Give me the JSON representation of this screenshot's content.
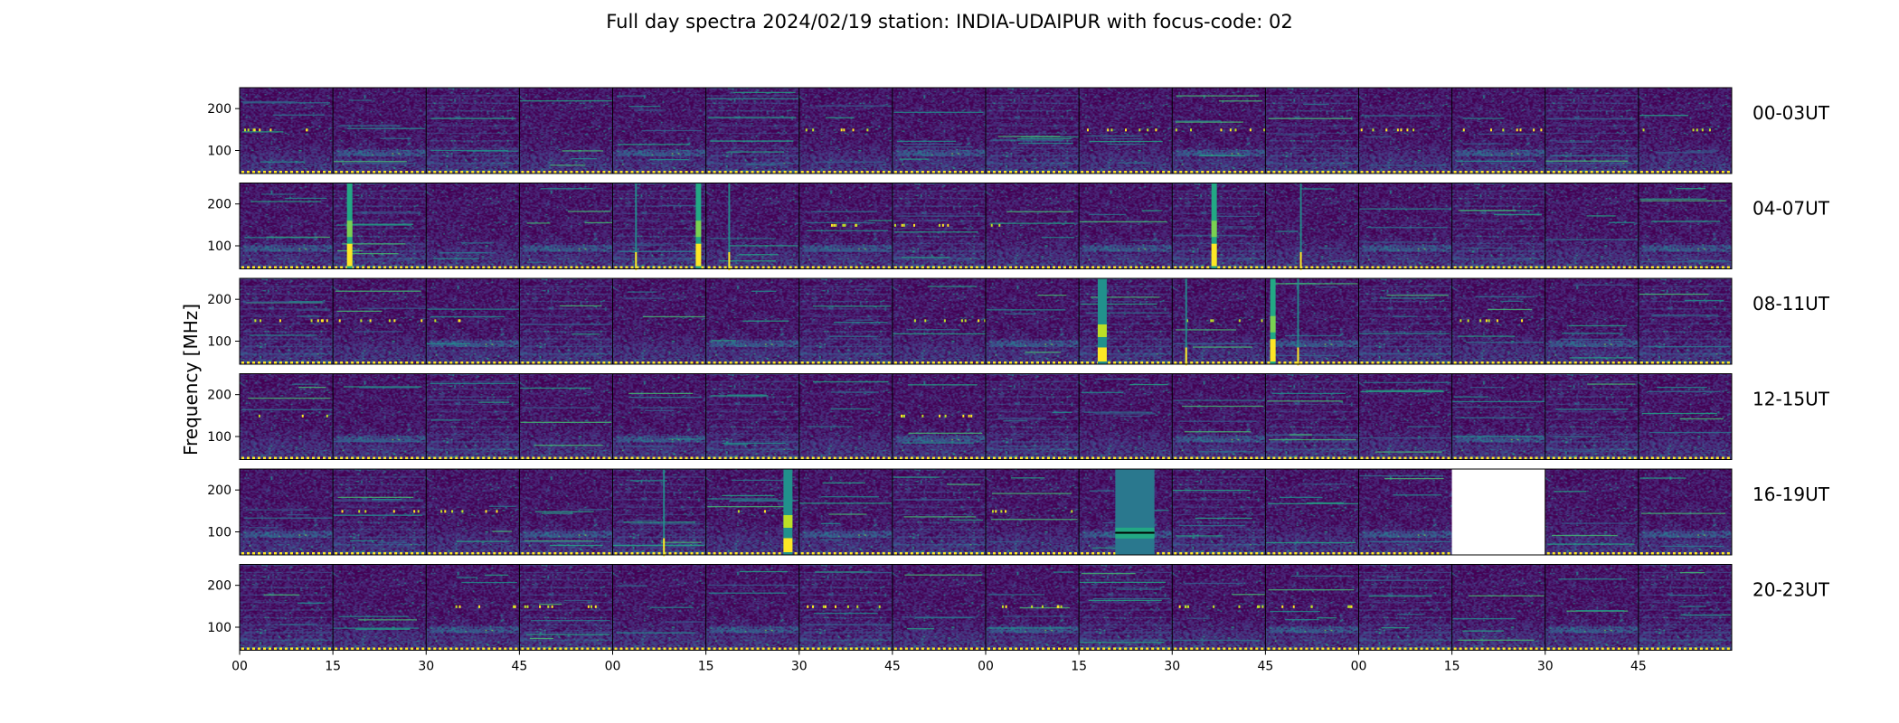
{
  "chart_data": {
    "type": "heatmap",
    "title": "Full day spectra 2024/02/19 station: INDIA-UDAIPUR with focus-code: 02",
    "ylabel": "Frequency [MHz]",
    "ylim": [
      45,
      250
    ],
    "yticks": [
      100,
      200
    ],
    "x_tick_labels": [
      "00",
      "15",
      "30",
      "45",
      "00",
      "15",
      "30",
      "45",
      "00",
      "15",
      "30",
      "45",
      "00",
      "15",
      "30",
      "45"
    ],
    "panels_per_row": 16,
    "panel_minutes": 15,
    "colormap": [
      "#440154",
      "#482475",
      "#414487",
      "#355f8d",
      "#2a788e",
      "#21918c",
      "#22a884",
      "#44bf70",
      "#7ad151",
      "#bddf26",
      "#fde725"
    ],
    "rows": [
      {
        "label": "00-03UT",
        "missing_panels": []
      },
      {
        "label": "04-07UT",
        "missing_panels": []
      },
      {
        "label": "08-11UT",
        "missing_panels": []
      },
      {
        "label": "12-15UT",
        "missing_panels": []
      },
      {
        "label": "16-19UT",
        "missing_panels": [
          13
        ]
      },
      {
        "label": "20-23UT",
        "missing_panels": []
      }
    ],
    "bursts": [
      {
        "row": 1,
        "panel": 1,
        "pos": 0.18,
        "type": "strong"
      },
      {
        "row": 1,
        "panel": 4,
        "pos": 0.92,
        "type": "strong"
      },
      {
        "row": 1,
        "panel": 4,
        "pos": 0.25,
        "type": "line"
      },
      {
        "row": 1,
        "panel": 5,
        "pos": 0.25,
        "type": "line"
      },
      {
        "row": 1,
        "panel": 10,
        "pos": 0.45,
        "type": "strong"
      },
      {
        "row": 1,
        "panel": 11,
        "pos": 0.38,
        "type": "line"
      },
      {
        "row": 2,
        "panel": 9,
        "pos": 0.25,
        "type": "wide"
      },
      {
        "row": 2,
        "panel": 10,
        "pos": 0.15,
        "type": "line"
      },
      {
        "row": 2,
        "panel": 11,
        "pos": 0.08,
        "type": "strong"
      },
      {
        "row": 2,
        "panel": 11,
        "pos": 0.35,
        "type": "line"
      },
      {
        "row": 4,
        "panel": 5,
        "pos": 0.88,
        "type": "wide"
      },
      {
        "row": 4,
        "panel": 4,
        "pos": 0.55,
        "type": "line"
      },
      {
        "row": 4,
        "panel": 9,
        "pos": 0.6,
        "type": "block"
      }
    ],
    "dashed_baseline_color": "#fde725",
    "grid": false
  }
}
